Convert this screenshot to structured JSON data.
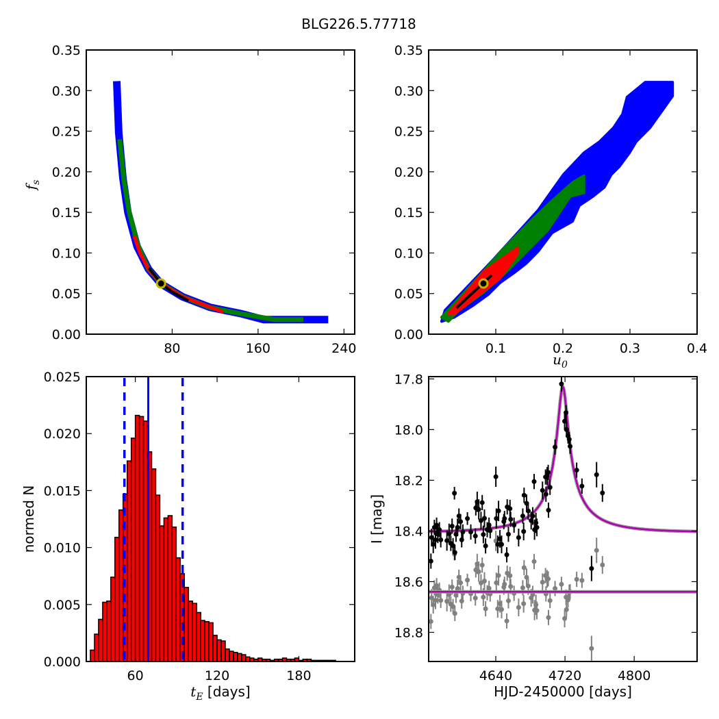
{
  "title": "BLG226.5.77718",
  "chart_data": [
    {
      "id": "fs_vs_tE",
      "type": "heatmap",
      "xlabel": {
        "main": "",
        "sub": ""
      },
      "ylabel": {
        "main": "f",
        "sub": "s"
      },
      "xlim": [
        0,
        250
      ],
      "ylim": [
        0,
        0.35
      ],
      "xticks": [
        80,
        160,
        240
      ],
      "xticklabels": [
        "80",
        "160",
        "240"
      ],
      "yticks": [
        0,
        0.05,
        0.1,
        0.15,
        0.2,
        0.25,
        0.3,
        0.35
      ],
      "yticklabels": [
        "0.00",
        "0.05",
        "0.10",
        "0.15",
        "0.20",
        "0.25",
        "0.30",
        "0.35"
      ],
      "regions": [
        {
          "level": "3sigma",
          "color": "#0000ff",
          "kind": "ridge",
          "points": [
            [
              28.5,
              0.307
            ],
            [
              30.2,
              0.248
            ],
            [
              34.1,
              0.192
            ],
            [
              38.8,
              0.15
            ],
            [
              47.3,
              0.108
            ],
            [
              57.9,
              0.08
            ],
            [
              69.6,
              0.062
            ],
            [
              89.8,
              0.046
            ],
            [
              115.4,
              0.033
            ],
            [
              145.1,
              0.025
            ],
            [
              165,
              0.018
            ],
            [
              221.8,
              0.018
            ]
          ]
        },
        {
          "level": "2sigma",
          "color": "#008000",
          "kind": "ridge",
          "points": [
            [
              31.3,
              0.237
            ],
            [
              35,
              0.19
            ],
            [
              40,
              0.15
            ],
            [
              48,
              0.11
            ],
            [
              58,
              0.08
            ],
            [
              70,
              0.062
            ],
            [
              90,
              0.046
            ],
            [
              115,
              0.033
            ],
            [
              145,
              0.025
            ],
            [
              175,
              0.018
            ],
            [
              200,
              0.018
            ]
          ]
        },
        {
          "level": "1sigma",
          "color": "#ff0000",
          "kind": "ridge",
          "points": [
            [
              45,
              0.119
            ],
            [
              50,
              0.1
            ],
            [
              58,
              0.08
            ],
            [
              70,
              0.062
            ],
            [
              90,
              0.046
            ],
            [
              110,
              0.036
            ],
            [
              126,
              0.028
            ]
          ]
        },
        {
          "level": "best",
          "color": "#000000",
          "kind": "ridge",
          "points": [
            [
              59,
              0.08
            ],
            [
              70,
              0.062
            ],
            [
              80,
              0.052
            ],
            [
              94,
              0.042
            ]
          ]
        }
      ],
      "best_fit": [
        69.6,
        0.0624
      ]
    },
    {
      "id": "fs_vs_u0",
      "type": "heatmap",
      "xlabel": {
        "main": "u",
        "sub": "0"
      },
      "ylabel": {
        "main": "",
        "sub": ""
      },
      "xlim": [
        0,
        0.4
      ],
      "ylim": [
        0,
        0.35
      ],
      "xticks": [
        0.1,
        0.2,
        0.3,
        0.4
      ],
      "xticklabels": [
        "0.1",
        "0.2",
        "0.3",
        "0.4"
      ],
      "yticks": [
        0,
        0.05,
        0.1,
        0.15,
        0.2,
        0.25,
        0.3,
        0.35
      ],
      "yticklabels": [
        "0.00",
        "0.05",
        "0.10",
        "0.15",
        "0.20",
        "0.25",
        "0.30",
        "0.35"
      ],
      "regions": [
        {
          "level": "3sigma",
          "color": "#0000ff",
          "kind": "area",
          "points": [
            [
              0.0244,
              0.0293
            ],
            [
              0.0956,
              0.0911
            ],
            [
              0.1634,
              0.1529
            ],
            [
              0.1838,
              0.1768
            ],
            [
              0.2008,
              0.1965
            ],
            [
              0.2313,
              0.2232
            ],
            [
              0.255,
              0.2372
            ],
            [
              0.2754,
              0.2541
            ],
            [
              0.2889,
              0.2709
            ],
            [
              0.2957,
              0.292
            ],
            [
              0.3228,
              0.3103
            ],
            [
              0.3635,
              0.3103
            ],
            [
              0.3635,
              0.2934
            ],
            [
              0.3466,
              0.2738
            ],
            [
              0.3296,
              0.2541
            ],
            [
              0.3093,
              0.2372
            ],
            [
              0.2991,
              0.2232
            ],
            [
              0.2839,
              0.2063
            ],
            [
              0.272,
              0.1965
            ],
            [
              0.2618,
              0.181
            ],
            [
              0.2449,
              0.1698
            ],
            [
              0.2245,
              0.1585
            ],
            [
              0.2143,
              0.1389
            ],
            [
              0.1838,
              0.1248
            ],
            [
              0.1634,
              0.1023
            ],
            [
              0.1448,
              0.0868
            ],
            [
              0.1295,
              0.077
            ],
            [
              0.1058,
              0.063
            ],
            [
              0.0888,
              0.0489
            ],
            [
              0.0651,
              0.0348
            ],
            [
              0.038,
              0.0208
            ],
            [
              0.0193,
              0.0158
            ]
          ]
        },
        {
          "level": "2sigma",
          "color": "#008000",
          "kind": "area",
          "points": [
            [
              0.0193,
              0.0208
            ],
            [
              0.0753,
              0.0714
            ],
            [
              0.116,
              0.1093
            ],
            [
              0.1567,
              0.1431
            ],
            [
              0.1838,
              0.1641
            ],
            [
              0.2143,
              0.1866
            ],
            [
              0.2313,
              0.1951
            ],
            [
              0.2313,
              0.174
            ],
            [
              0.2109,
              0.1698
            ],
            [
              0.1974,
              0.1529
            ],
            [
              0.177,
              0.1276
            ],
            [
              0.1567,
              0.1107
            ],
            [
              0.1363,
              0.0939
            ],
            [
              0.1092,
              0.0714
            ],
            [
              0.0821,
              0.0517
            ],
            [
              0.0448,
              0.0292
            ],
            [
              0.0295,
              0.0158
            ]
          ]
        },
        {
          "level": "1sigma",
          "color": "#ff0000",
          "kind": "area",
          "points": [
            [
              0.0295,
              0.025
            ],
            [
              0.0821,
              0.077
            ],
            [
              0.1329,
              0.1065
            ],
            [
              0.1329,
              0.0995
            ],
            [
              0.1058,
              0.0686
            ],
            [
              0.0753,
              0.0489
            ],
            [
              0.038,
              0.025
            ]
          ]
        },
        {
          "level": "best",
          "color": "#000000",
          "kind": "ridge",
          "points": [
            [
              0.0431,
              0.0337
            ],
            [
              0.0923,
              0.0714
            ]
          ]
        }
      ],
      "best_fit": [
        0.0816,
        0.0624
      ]
    },
    {
      "id": "tE_histogram",
      "type": "bar",
      "xlabel": {
        "main": "t",
        "sub": "E",
        "suffix": " [days]"
      },
      "ylabel": {
        "main": "normed N",
        "sub": ""
      },
      "xlim": [
        24,
        221
      ],
      "ylim": [
        0,
        0.025
      ],
      "xticks": [
        60,
        120,
        180
      ],
      "xticklabels": [
        "60",
        "120",
        "180"
      ],
      "yticks": [
        0,
        0.005,
        0.01,
        0.015,
        0.02,
        0.025
      ],
      "yticklabels": [
        "0.000",
        "0.005",
        "0.010",
        "0.015",
        "0.020",
        "0.025"
      ],
      "bin_start": 27,
      "bin_width": 3.0,
      "values": [
        0.001,
        0.0024,
        0.0037,
        0.0052,
        0.0053,
        0.0074,
        0.0109,
        0.0133,
        0.0147,
        0.0176,
        0.0196,
        0.0216,
        0.0215,
        0.0211,
        0.0184,
        0.0169,
        0.0146,
        0.0119,
        0.0126,
        0.0128,
        0.0118,
        0.0091,
        0.0077,
        0.0065,
        0.0053,
        0.0051,
        0.0043,
        0.0036,
        0.0035,
        0.0034,
        0.0023,
        0.0019,
        0.0018,
        0.0011,
        0.0009,
        0.0008,
        0.0007,
        0.0006,
        0.0004,
        0.0003,
        0.0002,
        0.0003,
        0.0002,
        0.0002,
        0.0001,
        0.0002,
        0.0002,
        0.0003,
        0.0002,
        0.0002,
        0.0003,
        0.0001,
        0.0002,
        0.0002,
        0.0001,
        0.0001,
        0.0001,
        0.0001,
        0.0001,
        0.0001
      ],
      "bar_color": "#ff0000",
      "median": 69.5,
      "lower": 52.0,
      "upper": 94.7,
      "line_color": "#0000ff"
    },
    {
      "id": "light_curve",
      "type": "scatter",
      "xlabel": {
        "main": "HJD-2450000 [days]",
        "sub": ""
      },
      "ylabel": {
        "main": "I [mag]",
        "sub": ""
      },
      "xlim": [
        4562.4,
        4872.7
      ],
      "ylim": [
        18.915,
        17.791
      ],
      "xticks": [
        4640,
        4720,
        4800
      ],
      "xticklabels": [
        "4640",
        "4720",
        "4800"
      ],
      "yticks": [
        17.8,
        18.0,
        18.2,
        18.4,
        18.6,
        18.8
      ],
      "yticklabels": [
        "17.8",
        "18.0",
        "18.2",
        "18.4",
        "18.6",
        "18.8"
      ],
      "model": {
        "t0": 4717.5,
        "u0": 0.082,
        "tE": 69.6,
        "fs": 0.062,
        "baseline": 18.405,
        "color": "#b000b0"
      },
      "residual_baseline": 18.64,
      "data_color": "#000000",
      "residual_color": "#808080",
      "points": [
        [
          4565.0,
          18.519,
          0.03
        ],
        [
          4565.8,
          18.426,
          0.035
        ],
        [
          4567.7,
          18.453,
          0.035
        ],
        [
          4569.0,
          18.386,
          0.03
        ],
        [
          4570.3,
          18.435,
          0.035
        ],
        [
          4571.6,
          18.377,
          0.03
        ],
        [
          4573.0,
          18.413,
          0.035
        ],
        [
          4574.8,
          18.395,
          0.03
        ],
        [
          4576.4,
          18.435,
          0.03
        ],
        [
          4583.5,
          18.438,
          0.04
        ],
        [
          4586.0,
          18.411,
          0.04
        ],
        [
          4588.0,
          18.449,
          0.03
        ],
        [
          4589.5,
          18.381,
          0.03
        ],
        [
          4590.6,
          18.458,
          0.03
        ],
        [
          4592.2,
          18.251,
          0.025
        ],
        [
          4592.7,
          18.485,
          0.03
        ],
        [
          4594.0,
          18.413,
          0.03
        ],
        [
          4595.8,
          18.386,
          0.035
        ],
        [
          4597.4,
          18.341,
          0.03
        ],
        [
          4599.3,
          18.363,
          0.03
        ],
        [
          4600.6,
          18.435,
          0.03
        ],
        [
          4601.9,
          18.404,
          0.03
        ],
        [
          4607.2,
          18.351,
          0.025
        ],
        [
          4611.1,
          18.404,
          0.03
        ],
        [
          4616.4,
          18.42,
          0.03
        ],
        [
          4616.9,
          18.309,
          0.03
        ],
        [
          4618.5,
          18.285,
          0.04
        ],
        [
          4620.3,
          18.315,
          0.04
        ],
        [
          4622.9,
          18.359,
          0.035
        ],
        [
          4624.3,
          18.288,
          0.03
        ],
        [
          4625.6,
          18.414,
          0.035
        ],
        [
          4626.9,
          18.35,
          0.035
        ],
        [
          4628.2,
          18.459,
          0.03
        ],
        [
          4630.1,
          18.395,
          0.03
        ],
        [
          4632.2,
          18.377,
          0.03
        ],
        [
          4633.5,
          18.399,
          0.03
        ],
        [
          4640.1,
          18.186,
          0.04
        ],
        [
          4640.6,
          18.351,
          0.04
        ],
        [
          4642.2,
          18.453,
          0.035
        ],
        [
          4643.2,
          18.321,
          0.04
        ],
        [
          4644.8,
          18.431,
          0.035
        ],
        [
          4646.7,
          18.453,
          0.035
        ],
        [
          4649.3,
          18.363,
          0.03
        ],
        [
          4650.1,
          18.351,
          0.03
        ],
        [
          4652.7,
          18.494,
          0.03
        ],
        [
          4653.2,
          18.305,
          0.03
        ],
        [
          4654.6,
          18.413,
          0.03
        ],
        [
          4656.4,
          18.312,
          0.035
        ],
        [
          4657.2,
          18.354,
          0.03
        ],
        [
          4661.1,
          18.377,
          0.03
        ],
        [
          4666.4,
          18.426,
          0.035
        ],
        [
          4671.2,
          18.341,
          0.03
        ],
        [
          4672.2,
          18.402,
          0.035
        ],
        [
          4672.7,
          18.259,
          0.03
        ],
        [
          4675.6,
          18.291,
          0.035
        ],
        [
          4677.5,
          18.321,
          0.035
        ],
        [
          4680.9,
          18.359,
          0.035
        ],
        [
          4682.7,
          18.341,
          0.035
        ],
        [
          4684.3,
          18.205,
          0.03
        ],
        [
          4684.8,
          18.395,
          0.04
        ],
        [
          4686.4,
          18.368,
          0.04
        ],
        [
          4687.5,
          18.386,
          0.035
        ],
        [
          4694.0,
          18.24,
          0.035
        ],
        [
          4697.5,
          18.187,
          0.03
        ],
        [
          4698.0,
          18.255,
          0.03
        ],
        [
          4699.3,
          18.183,
          0.035
        ],
        [
          4700.6,
          18.169,
          0.03
        ],
        [
          4700.9,
          18.318,
          0.03
        ],
        [
          4702.7,
          18.228,
          0.03
        ],
        [
          4708.5,
          18.069,
          0.03
        ],
        [
          4715.9,
          17.82,
          0.03
        ],
        [
          4719.6,
          17.967,
          0.035
        ],
        [
          4721.2,
          17.933,
          0.03
        ],
        [
          4721.7,
          18.0,
          0.03
        ],
        [
          4723.5,
          18.025,
          0.03
        ],
        [
          4724.9,
          18.039,
          0.03
        ],
        [
          4725.9,
          18.066,
          0.03
        ],
        [
          4733.5,
          18.16,
          0.03
        ],
        [
          4739.6,
          18.223,
          0.03
        ],
        [
          4750.7,
          18.548,
          0.05
        ],
        [
          4756.5,
          18.178,
          0.05
        ],
        [
          4763.3,
          18.25,
          0.035
        ]
      ]
    }
  ]
}
